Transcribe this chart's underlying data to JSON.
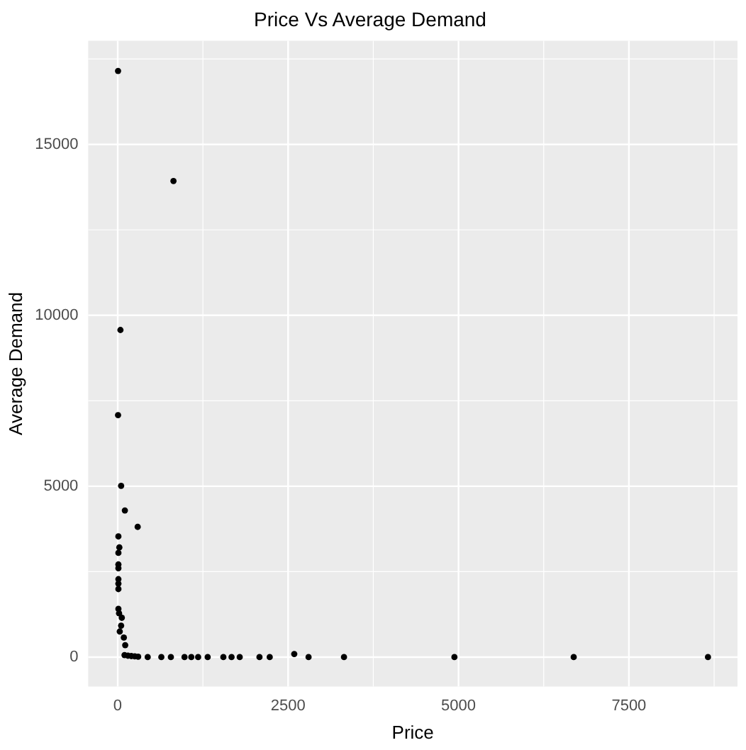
{
  "chart_data": {
    "type": "scatter",
    "title": "Price Vs Average Demand",
    "xlabel": "Price",
    "ylabel": "Average Demand",
    "xlim": [
      -433,
      9093
    ],
    "ylim": [
      -860,
      18030
    ],
    "xticks": [
      0,
      2500,
      5000,
      7500
    ],
    "yticks": [
      0,
      5000,
      10000,
      15000
    ],
    "grid": true,
    "legend": false,
    "marker": "circle",
    "series": [
      {
        "color": "#000000",
        "x": [
          5,
          818,
          40,
          5,
          50,
          105,
          293,
          10,
          24,
          10,
          10,
          10,
          10,
          10,
          10,
          10,
          20,
          60,
          50,
          30,
          90,
          110,
          100,
          150,
          200,
          250,
          300,
          440,
          640,
          780,
          980,
          1080,
          1180,
          1320,
          1550,
          1670,
          1790,
          2080,
          2230,
          2590,
          2800,
          3320,
          4940,
          6690,
          8660
        ],
        "values": [
          17150,
          13930,
          9570,
          7080,
          5010,
          4290,
          3810,
          3530,
          3210,
          3050,
          2710,
          2600,
          2280,
          2150,
          1990,
          1410,
          1280,
          1150,
          920,
          750,
          570,
          350,
          60,
          40,
          30,
          20,
          10,
          0,
          0,
          0,
          0,
          0,
          0,
          0,
          0,
          0,
          0,
          0,
          0,
          90,
          0,
          0,
          0,
          0,
          0
        ]
      }
    ]
  }
}
